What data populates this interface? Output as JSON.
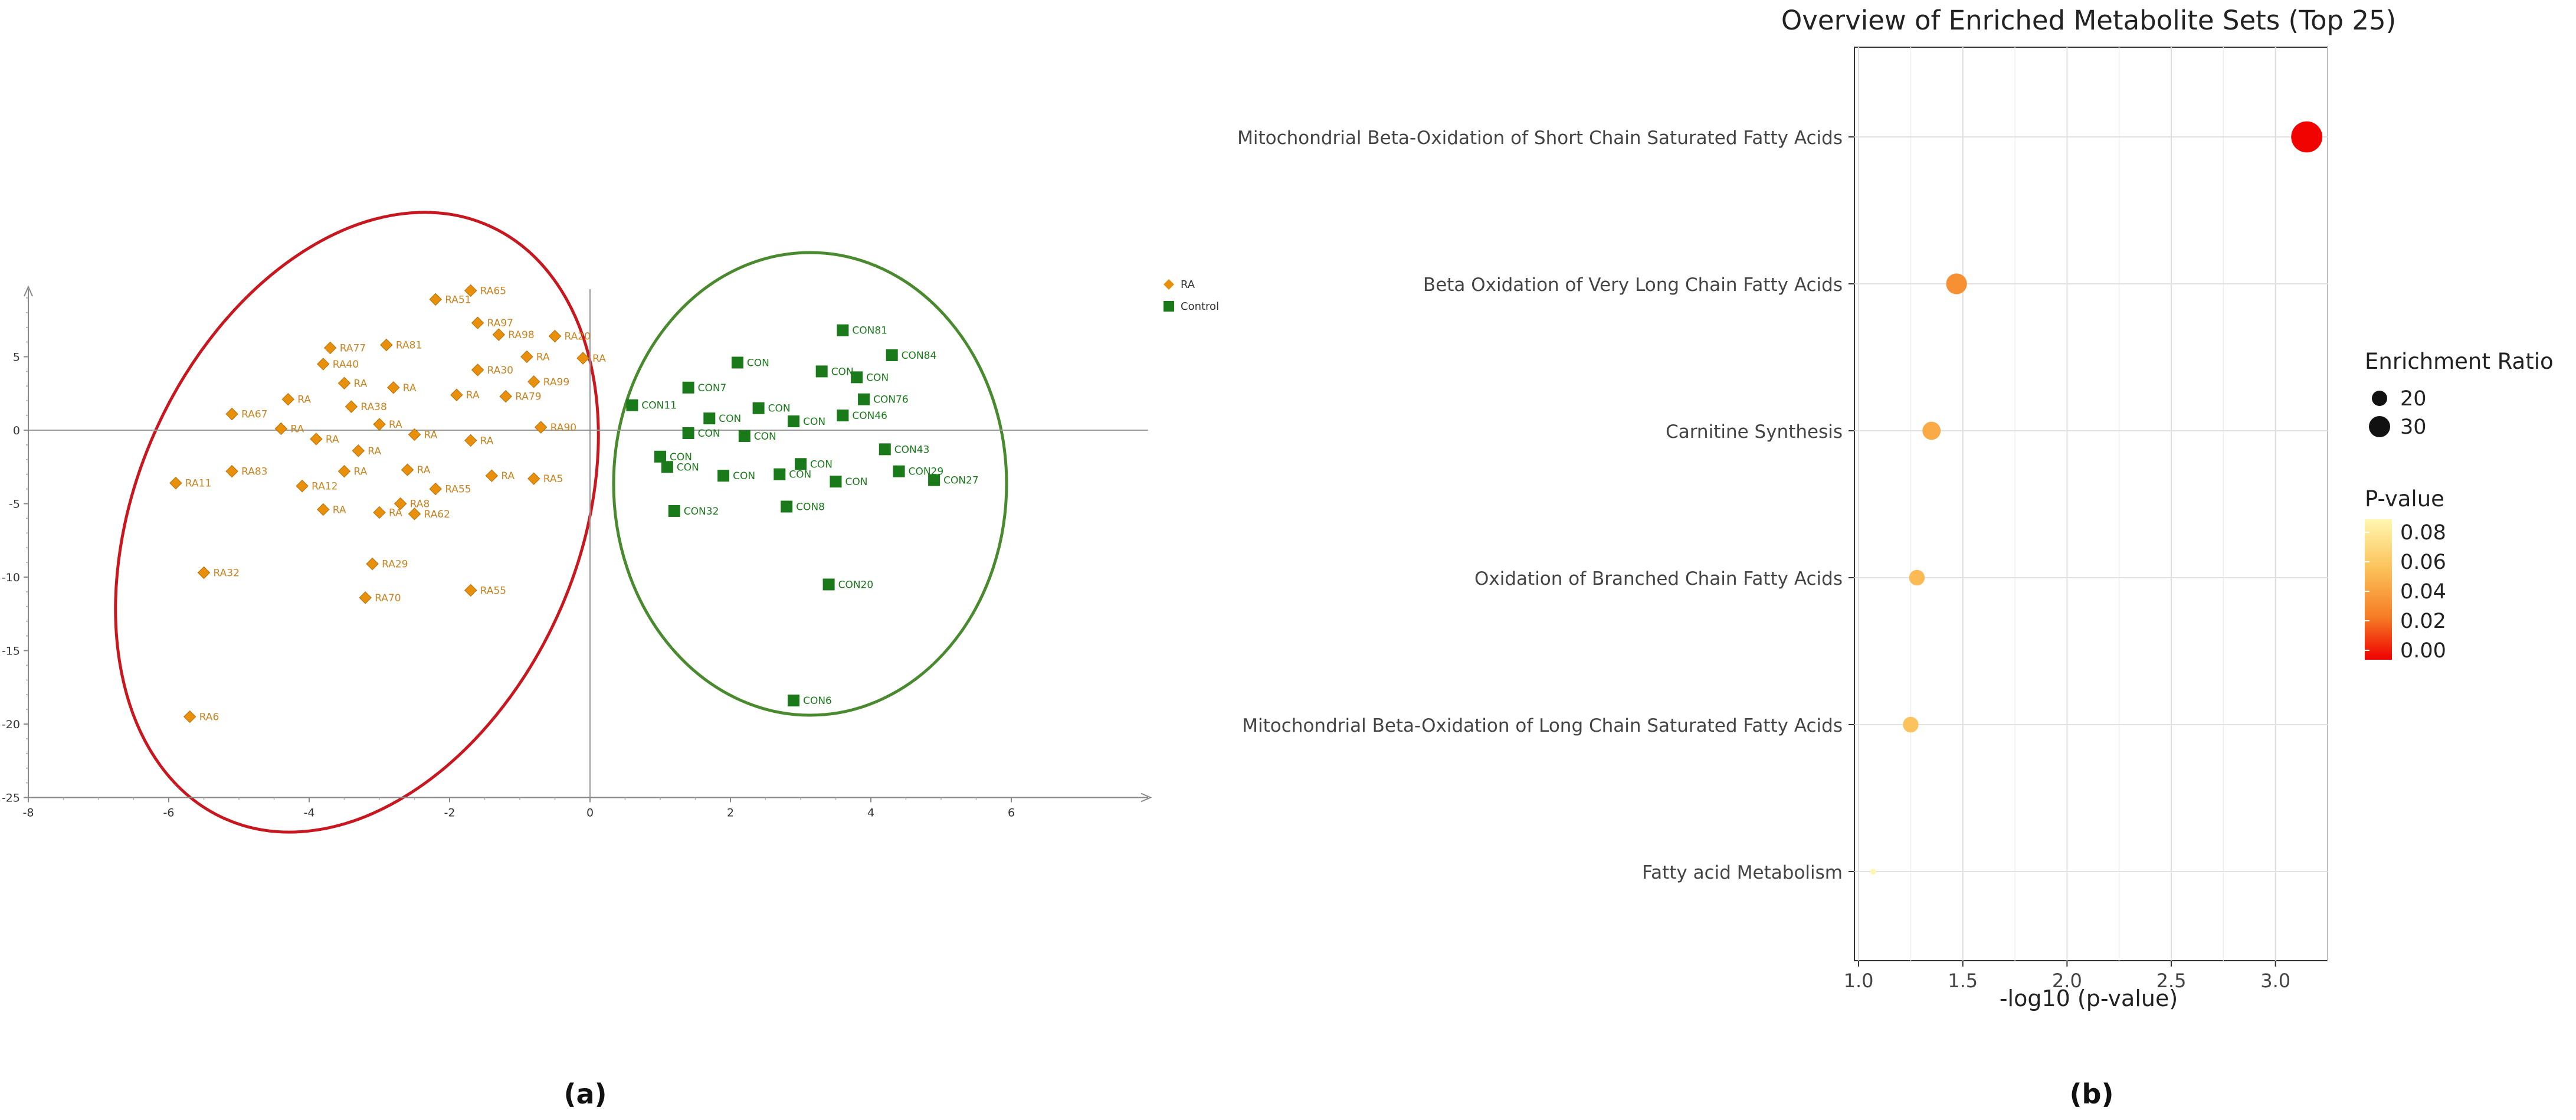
{
  "colors": {
    "ra": "#e8900c",
    "ra_label": "#c98320",
    "control": "#1a7a1a",
    "ra_ellipse": "#c8171e",
    "con_ellipse": "#4a8a2e"
  },
  "panel_labels": {
    "a": "(a)",
    "b": "(b)"
  },
  "chart_data": [
    {
      "type": "scatter",
      "title": "",
      "xlabel": "",
      "ylabel": "",
      "xlim": [
        -8,
        8
      ],
      "ylim": [
        -25,
        10
      ],
      "x_ticks": [
        "-8",
        "-6",
        "-4",
        "-2",
        "0",
        "2",
        "4",
        "6"
      ],
      "y_ticks": [
        "5",
        "0",
        "-5",
        "-10",
        "-15",
        "-20",
        "-25"
      ],
      "legend": {
        "placement": "top-right",
        "entries": [
          "RA",
          "Control"
        ]
      },
      "series": [
        {
          "name": "RA",
          "marker": "diamond",
          "points": [
            {
              "label": "RA65",
              "x": -1.7,
              "y": 9.5
            },
            {
              "label": "RA51",
              "x": -2.2,
              "y": 8.9
            },
            {
              "label": "RA97",
              "x": -1.6,
              "y": 7.3
            },
            {
              "label": "RA98",
              "x": -1.3,
              "y": 6.5
            },
            {
              "label": "RA20",
              "x": -0.5,
              "y": 6.4
            },
            {
              "label": "RA81",
              "x": -2.9,
              "y": 5.8
            },
            {
              "label": "RA77",
              "x": -3.7,
              "y": 5.6
            },
            {
              "label": "RA",
              "x": -0.9,
              "y": 5.0
            },
            {
              "label": "RA",
              "x": -0.1,
              "y": 4.9
            },
            {
              "label": "RA40",
              "x": -3.8,
              "y": 4.5
            },
            {
              "label": "RA99",
              "x": -0.8,
              "y": 3.3
            },
            {
              "label": "RA30",
              "x": -1.6,
              "y": 4.1
            },
            {
              "label": "RA79",
              "x": -1.2,
              "y": 2.3
            },
            {
              "label": "RA67",
              "x": -5.1,
              "y": 1.1
            },
            {
              "label": "RA38",
              "x": -3.4,
              "y": 1.6
            },
            {
              "label": "RA90",
              "x": -0.7,
              "y": 0.2
            },
            {
              "label": "RA",
              "x": -4.3,
              "y": 2.1
            },
            {
              "label": "RA",
              "x": -4.4,
              "y": 0.1
            },
            {
              "label": "RA",
              "x": -3.0,
              "y": 0.4
            },
            {
              "label": "RA",
              "x": -2.5,
              "y": -0.3
            },
            {
              "label": "RA",
              "x": -1.7,
              "y": -0.7
            },
            {
              "label": "RA",
              "x": -1.9,
              "y": 2.4
            },
            {
              "label": "RA",
              "x": -2.8,
              "y": 2.9
            },
            {
              "label": "RA",
              "x": -3.5,
              "y": 3.2
            },
            {
              "label": "RA",
              "x": -3.9,
              "y": -0.6
            },
            {
              "label": "RA",
              "x": -3.3,
              "y": -1.4
            },
            {
              "label": "RA",
              "x": -2.6,
              "y": -2.7
            },
            {
              "label": "RA",
              "x": -1.4,
              "y": -3.1
            },
            {
              "label": "RA5",
              "x": -0.8,
              "y": -3.3
            },
            {
              "label": "RA83",
              "x": -5.1,
              "y": -2.8
            },
            {
              "label": "RA11",
              "x": -5.9,
              "y": -3.6
            },
            {
              "label": "RA12",
              "x": -4.1,
              "y": -3.8
            },
            {
              "label": "RA",
              "x": -3.5,
              "y": -2.8
            },
            {
              "label": "RA55",
              "x": -2.2,
              "y": -4.0
            },
            {
              "label": "RA8",
              "x": -2.7,
              "y": -5.0
            },
            {
              "label": "RA62",
              "x": -2.5,
              "y": -5.7
            },
            {
              "label": "RA",
              "x": -3.0,
              "y": -5.6
            },
            {
              "label": "RA",
              "x": -3.8,
              "y": -5.4
            },
            {
              "label": "RA29",
              "x": -3.1,
              "y": -9.1
            },
            {
              "label": "RA32",
              "x": -5.5,
              "y": -9.7
            },
            {
              "label": "RA55",
              "x": -1.7,
              "y": -10.9
            },
            {
              "label": "RA70",
              "x": -3.2,
              "y": -11.4
            },
            {
              "label": "RA6",
              "x": -5.7,
              "y": -19.5
            }
          ]
        },
        {
          "name": "Control",
          "marker": "square",
          "points": [
            {
              "label": "CON81",
              "x": 3.6,
              "y": 6.8
            },
            {
              "label": "CON84",
              "x": 4.3,
              "y": 5.1
            },
            {
              "label": "CON",
              "x": 2.1,
              "y": 4.6
            },
            {
              "label": "CON",
              "x": 3.3,
              "y": 4.0
            },
            {
              "label": "CON",
              "x": 3.8,
              "y": 3.6
            },
            {
              "label": "CON7",
              "x": 1.4,
              "y": 2.9
            },
            {
              "label": "CON11",
              "x": 0.6,
              "y": 1.7
            },
            {
              "label": "CON76",
              "x": 3.9,
              "y": 2.1
            },
            {
              "label": "CON46",
              "x": 3.6,
              "y": 1.0
            },
            {
              "label": "CON",
              "x": 2.4,
              "y": 1.5
            },
            {
              "label": "CON",
              "x": 2.9,
              "y": 0.6
            },
            {
              "label": "CON",
              "x": 1.7,
              "y": 0.8
            },
            {
              "label": "CON",
              "x": 2.2,
              "y": -0.4
            },
            {
              "label": "CON",
              "x": 1.4,
              "y": -0.2
            },
            {
              "label": "CON43",
              "x": 4.2,
              "y": -1.3
            },
            {
              "label": "CON",
              "x": 1.0,
              "y": -1.8
            },
            {
              "label": "CON",
              "x": 1.1,
              "y": -2.5
            },
            {
              "label": "CON29",
              "x": 4.4,
              "y": -2.8
            },
            {
              "label": "CON27",
              "x": 4.9,
              "y": -3.4
            },
            {
              "label": "CON",
              "x": 3.0,
              "y": -2.3
            },
            {
              "label": "CON",
              "x": 3.5,
              "y": -3.5
            },
            {
              "label": "CON",
              "x": 2.7,
              "y": -3.0
            },
            {
              "label": "CON",
              "x": 1.9,
              "y": -3.1
            },
            {
              "label": "CON8",
              "x": 2.8,
              "y": -5.2
            },
            {
              "label": "CON32",
              "x": 1.2,
              "y": -5.5
            },
            {
              "label": "CON20",
              "x": 3.4,
              "y": -10.5
            },
            {
              "label": "CON6",
              "x": 2.9,
              "y": -18.4
            }
          ]
        }
      ]
    },
    {
      "type": "scatter",
      "title": "Overview of Enriched Metabolite Sets (Top 25)",
      "xlabel": "-log10 (p-value)",
      "ylabel": "",
      "xlim": [
        0.98,
        3.25
      ],
      "x_ticks": [
        1.0,
        1.5,
        2.0,
        2.5,
        3.0
      ],
      "x_tick_labels": [
        "1.0",
        "1.5",
        "2.0",
        "2.5",
        "3.0"
      ],
      "grid": true,
      "legend": {
        "placement": "right",
        "size_title": "Enrichment Ratio",
        "size_entries": [
          "20",
          "30"
        ],
        "color_title": "P-value",
        "color_ticks": [
          "0.08",
          "0.06",
          "0.04",
          "0.02",
          "0.00"
        ]
      },
      "categories": [
        "Mitochondrial Beta-Oxidation of Short Chain Saturated Fatty Acids",
        "Beta Oxidation of Very Long Chain Fatty Acids",
        "Carnitine Synthesis",
        "Oxidation of Branched Chain Fatty Acids",
        "Mitochondrial Beta-Oxidation of Long Chain Saturated Fatty Acids",
        "Fatty acid Metabolism"
      ],
      "x": [
        3.15,
        1.47,
        1.35,
        1.28,
        1.25,
        1.07
      ],
      "p_value": [
        0.0007,
        0.034,
        0.045,
        0.052,
        0.056,
        0.085
      ],
      "enrichment_ratio": [
        32,
        24,
        22,
        20,
        20,
        10
      ]
    }
  ]
}
